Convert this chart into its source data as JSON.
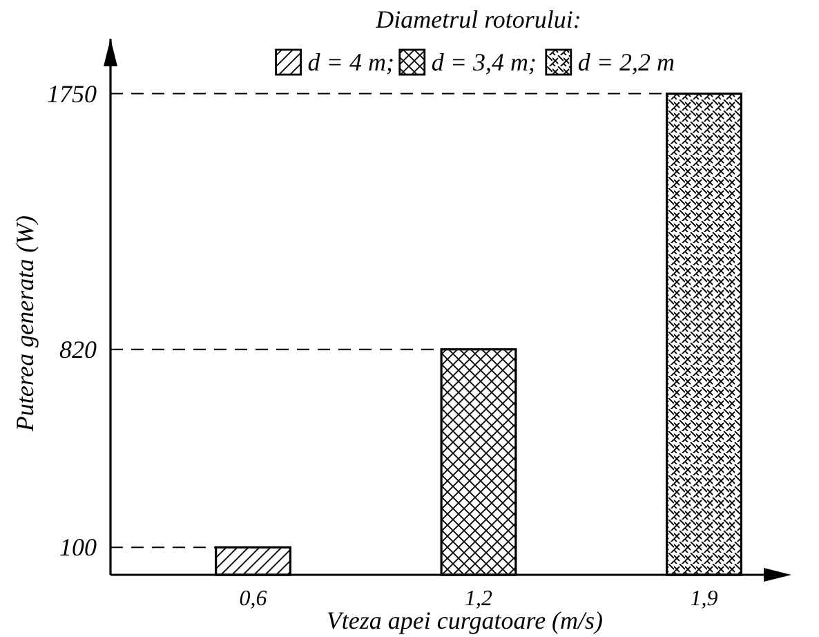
{
  "chart_data": {
    "type": "bar",
    "legend_title": "Diametrul rotorului:",
    "xlabel": "Vteza apei curgatoare (m/s)",
    "ylabel": "Puterea generata (W)",
    "categories": [
      "0,6",
      "1,2",
      "1,9"
    ],
    "series": [
      {
        "name": "d = 4 m;",
        "color": "#000000",
        "values": [
          100,
          null,
          null
        ]
      },
      {
        "name": "d = 3,4 m;",
        "color": "#000000",
        "values": [
          null,
          820,
          null
        ]
      },
      {
        "name": "d = 2,2 m",
        "color": "#000000",
        "values": [
          null,
          null,
          1750
        ]
      }
    ],
    "ylim": [
      0,
      1950
    ],
    "yticks": [
      100,
      820,
      1750
    ],
    "legend": "top",
    "grid": false,
    "ref_lines": [
      {
        "axis": "y",
        "value": 100,
        "line_style": "dashed"
      },
      {
        "axis": "y",
        "value": 820,
        "line_style": "dashed"
      },
      {
        "axis": "y",
        "value": 1750,
        "line_style": "dashed"
      }
    ]
  }
}
